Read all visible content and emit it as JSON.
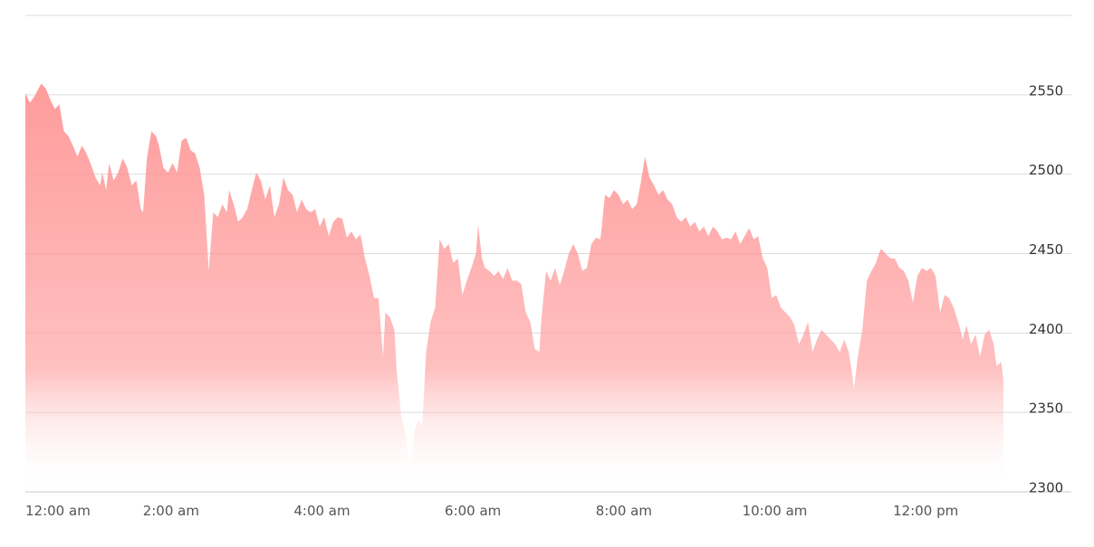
{
  "chart_data": {
    "type": "area",
    "color": "#ff9696",
    "x": [
      0.07,
      0.13,
      0.19,
      0.28,
      0.34,
      0.4,
      0.46,
      0.52,
      0.58,
      0.64,
      0.7,
      0.76,
      0.82,
      0.88,
      0.94,
      1.0,
      1.06,
      1.09,
      1.14,
      1.18,
      1.24,
      1.3,
      1.36,
      1.42,
      1.48,
      1.54,
      1.6,
      1.63,
      1.68,
      1.74,
      1.8,
      1.84,
      1.9,
      1.96,
      2.02,
      2.08,
      2.14,
      2.2,
      2.26,
      2.32,
      2.38,
      2.44,
      2.5,
      2.56,
      2.62,
      2.68,
      2.74,
      2.77,
      2.83,
      2.89,
      2.95,
      3.01,
      3.07,
      3.13,
      3.19,
      3.25,
      3.31,
      3.37,
      3.43,
      3.49,
      3.55,
      3.61,
      3.67,
      3.73,
      3.79,
      3.85,
      3.91,
      3.97,
      4.03,
      4.09,
      4.15,
      4.21,
      4.27,
      4.33,
      4.39,
      4.45,
      4.51,
      4.57,
      4.63,
      4.69,
      4.75,
      4.81,
      4.84,
      4.9,
      4.96,
      4.99,
      5.05,
      5.11,
      5.14,
      5.17,
      5.23,
      5.28,
      5.33,
      5.38,
      5.44,
      5.5,
      5.56,
      5.62,
      5.68,
      5.74,
      5.8,
      5.86,
      5.92,
      5.98,
      6.04,
      6.07,
      6.12,
      6.16,
      6.22,
      6.28,
      6.34,
      6.4,
      6.46,
      6.52,
      6.58,
      6.64,
      6.7,
      6.76,
      6.82,
      6.88,
      6.91,
      6.97,
      7.03,
      7.09,
      7.15,
      7.21,
      7.27,
      7.33,
      7.39,
      7.45,
      7.51,
      7.57,
      7.63,
      7.69,
      7.75,
      7.81,
      7.87,
      7.93,
      7.99,
      8.05,
      8.11,
      8.17,
      8.23,
      8.28,
      8.34,
      8.4,
      8.46,
      8.52,
      8.58,
      8.64,
      8.7,
      8.76,
      8.82,
      8.88,
      8.94,
      9.0,
      9.06,
      9.12,
      9.18,
      9.24,
      9.3,
      9.36,
      9.42,
      9.48,
      9.54,
      9.6,
      9.66,
      9.72,
      9.78,
      9.84,
      9.9,
      9.96,
      10.02,
      10.08,
      10.14,
      10.2,
      10.26,
      10.32,
      10.38,
      10.44,
      10.5,
      10.56,
      10.62,
      10.68,
      10.74,
      10.8,
      10.86,
      10.92,
      10.98,
      11.02,
      11.05,
      11.1,
      11.16,
      11.22,
      11.28,
      11.34,
      11.38,
      11.41,
      11.47,
      11.53,
      11.59,
      11.65,
      11.71,
      11.77,
      11.83,
      11.89,
      11.95,
      12.01,
      12.07,
      12.13,
      12.19,
      12.25,
      12.31,
      12.37,
      12.43,
      12.49,
      12.54,
      12.6,
      12.66,
      12.72,
      12.78,
      12.84,
      12.9,
      12.94,
      13.0,
      13.03
    ],
    "values": [
      2551,
      2545,
      2549,
      2557,
      2554,
      2547,
      2541,
      2544,
      2527,
      2524,
      2518,
      2511,
      2518,
      2513,
      2506,
      2498,
      2493,
      2501,
      2490,
      2507,
      2496,
      2501,
      2510,
      2504,
      2493,
      2496,
      2478,
      2476,
      2510,
      2527,
      2524,
      2518,
      2504,
      2501,
      2507,
      2501,
      2521,
      2523,
      2515,
      2513,
      2504,
      2487,
      2439,
      2476,
      2473,
      2481,
      2476,
      2490,
      2481,
      2470,
      2473,
      2478,
      2490,
      2501,
      2496,
      2484,
      2493,
      2473,
      2481,
      2498,
      2490,
      2487,
      2476,
      2484,
      2478,
      2476,
      2478,
      2467,
      2473,
      2461,
      2470,
      2473,
      2472,
      2460,
      2464,
      2459,
      2462,
      2447,
      2436,
      2422,
      2422,
      2385,
      2413,
      2410,
      2402,
      2376,
      2348,
      2336,
      2322,
      2316,
      2339,
      2345,
      2342,
      2388,
      2407,
      2416,
      2459,
      2453,
      2456,
      2444,
      2447,
      2424,
      2433,
      2441,
      2450,
      2468,
      2447,
      2441,
      2439,
      2436,
      2439,
      2434,
      2441,
      2433,
      2433,
      2431,
      2413,
      2407,
      2390,
      2388,
      2410,
      2439,
      2433,
      2441,
      2430,
      2439,
      2450,
      2456,
      2450,
      2439,
      2441,
      2456,
      2460,
      2459,
      2487,
      2485,
      2490,
      2487,
      2481,
      2484,
      2478,
      2481,
      2496,
      2511,
      2498,
      2493,
      2487,
      2490,
      2484,
      2481,
      2473,
      2470,
      2473,
      2467,
      2470,
      2464,
      2467,
      2461,
      2467,
      2464,
      2459,
      2460,
      2459,
      2464,
      2456,
      2461,
      2466,
      2459,
      2461,
      2447,
      2441,
      2422,
      2424,
      2416,
      2413,
      2410,
      2405,
      2393,
      2399,
      2407,
      2388,
      2396,
      2402,
      2399,
      2396,
      2393,
      2388,
      2396,
      2388,
      2376,
      2365,
      2385,
      2402,
      2433,
      2439,
      2444,
      2450,
      2453,
      2450,
      2447,
      2447,
      2441,
      2439,
      2433,
      2419,
      2436,
      2441,
      2439,
      2441,
      2436,
      2413,
      2424,
      2422,
      2416,
      2407,
      2396,
      2405,
      2393,
      2399,
      2385,
      2399,
      2402,
      2393,
      2379,
      2382,
      2370
    ],
    "xlim": [
      0.07,
      13.93
    ],
    "xticks": [
      {
        "value": 0,
        "label": "12:00 am"
      },
      {
        "value": 2,
        "label": "2:00 am"
      },
      {
        "value": 4,
        "label": "4:00 am"
      },
      {
        "value": 6,
        "label": "6:00 am"
      },
      {
        "value": 8,
        "label": "8:00 am"
      },
      {
        "value": 10,
        "label": "10:00 am"
      },
      {
        "value": 12,
        "label": "12:00 pm"
      }
    ],
    "ylim": [
      2300,
      2600
    ],
    "yticks": [
      2300,
      2350,
      2400,
      2450,
      2500,
      2550
    ],
    "grid": true
  }
}
